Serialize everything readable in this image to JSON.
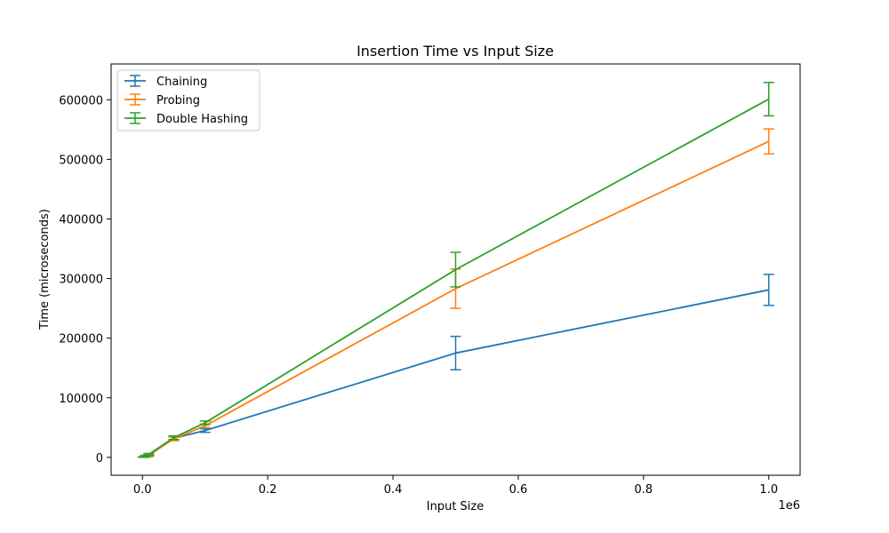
{
  "chart_data": {
    "type": "line",
    "title": "Insertion Time vs Input Size",
    "xlabel": "Input Size",
    "ylabel": "Time (microseconds)",
    "x_offset_label": "1e6",
    "x": [
      1000,
      5000,
      10000,
      50000,
      100000,
      500000,
      1000000
    ],
    "xlim": [
      -50000,
      1050000
    ],
    "ylim": [
      -30000,
      660000
    ],
    "xticks": [
      0,
      200000,
      400000,
      600000,
      800000,
      1000000
    ],
    "xtick_labels": [
      "0.0",
      "0.2",
      "0.4",
      "0.6",
      "0.8",
      "1.0"
    ],
    "yticks": [
      0,
      100000,
      200000,
      300000,
      400000,
      500000,
      600000
    ],
    "ytick_labels": [
      "0",
      "100000",
      "200000",
      "300000",
      "400000",
      "500000",
      "600000"
    ],
    "grid": false,
    "legend_position": "top-left",
    "series": [
      {
        "name": "Chaining",
        "color": "#1f77b4",
        "values": [
          300,
          1500,
          3000,
          32000,
          45000,
          175000,
          281000
        ],
        "errors": [
          200,
          1000,
          1500,
          3000,
          3000,
          28000,
          26000
        ]
      },
      {
        "name": "Probing",
        "color": "#ff7f0e",
        "values": [
          400,
          2000,
          3500,
          31000,
          53000,
          283000,
          530000
        ],
        "errors": [
          200,
          1000,
          1500,
          3000,
          3000,
          33000,
          21000
        ]
      },
      {
        "name": "Double Hashing",
        "color": "#2ca02c",
        "values": [
          500,
          2500,
          5000,
          33000,
          58000,
          315000,
          601000
        ],
        "errors": [
          200,
          1000,
          1500,
          3000,
          3000,
          29000,
          28000
        ]
      }
    ]
  }
}
